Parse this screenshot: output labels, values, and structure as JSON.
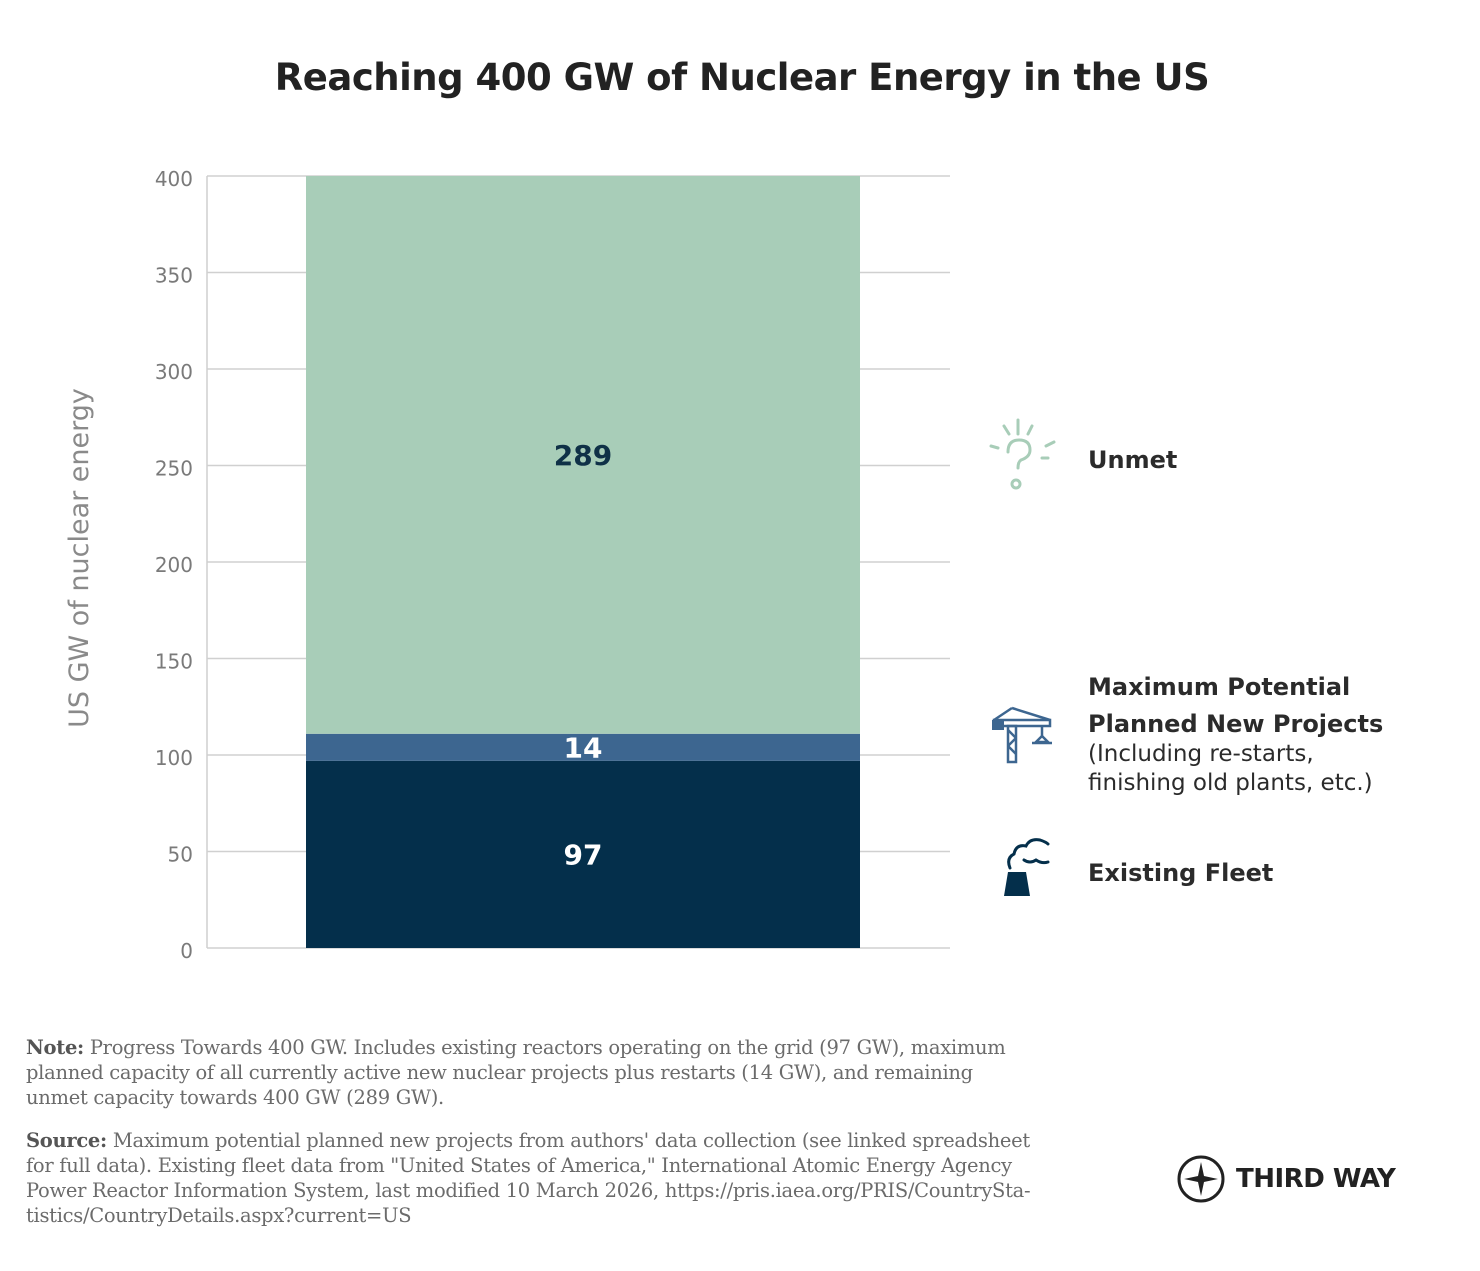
{
  "chart_data": {
    "type": "bar",
    "stacked": true,
    "title": "Reaching 400 GW of Nuclear Energy in the US",
    "ylabel": "US GW of nuclear energy",
    "xlabel": "",
    "ylim": [
      0,
      400
    ],
    "yticks": [
      "0",
      "50",
      "100",
      "150",
      "200",
      "250",
      "300",
      "350",
      "400"
    ],
    "grid": true,
    "legend_position": "right",
    "series": [
      {
        "name": "Existing Fleet",
        "value": 97,
        "label": "97",
        "color": "#042f4b",
        "label_color": "#ffffff"
      },
      {
        "name": "Maximum Potential Planned New Projects",
        "value": 14,
        "label": "14",
        "color": "#3d6690",
        "label_color": "#ffffff"
      },
      {
        "name": "Unmet",
        "value": 289,
        "label": "289",
        "color": "#a8cdb8",
        "label_color": "#0f3147"
      }
    ]
  },
  "legend": {
    "unmet": {
      "label": "Unmet",
      "icon": "lightbulb-question-icon",
      "color": "#a8cdb8"
    },
    "planned": {
      "label_lines": [
        "Maximum Potential",
        "Planned New Projects"
      ],
      "sub_lines": [
        "(Including re-starts,",
        "finishing old plants, etc.)"
      ],
      "icon": "crane-icon",
      "color": "#3d6690"
    },
    "existing": {
      "label": "Existing Fleet",
      "icon": "cooling-tower-icon",
      "color": "#042f4b"
    }
  },
  "note": {
    "prefix": "Note:",
    "lines": [
      " Progress Towards 400 GW. Includes existing reactors operating on the grid (97 GW), maximum",
      "planned capacity of all currently active new nuclear projects plus restarts (14 GW), and remaining",
      "unmet capacity towards 400 GW (289 GW)."
    ]
  },
  "source": {
    "prefix": "Source:",
    "lines": [
      " Maximum potential planned new projects from authors' data collection (see linked spreadsheet",
      "for full data). Existing fleet data from \"United States of America,\" International Atomic Energy Agency",
      "Power Reactor Information System, last modified 10 March 2026, https://pris.iaea.org/PRIS/CountrySta-",
      "tistics/CountryDetails.aspx?current=US"
    ]
  },
  "brand": {
    "name": "THIRD WAY",
    "icon": "compass-star-icon"
  }
}
